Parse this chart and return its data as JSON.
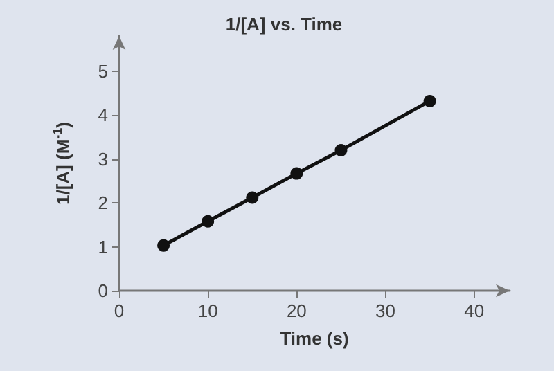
{
  "chart_data": {
    "type": "line",
    "title": "1/[A] vs. Time",
    "xlabel": "Time (s)",
    "ylabel": "1/[A] (M$^{-1}$)",
    "x": [
      5,
      10,
      15,
      20,
      25,
      35
    ],
    "series": [
      {
        "color": "#111111",
        "values": [
          1.03,
          1.58,
          2.12,
          2.67,
          3.2,
          4.32
        ]
      }
    ],
    "xlim": [
      0,
      44
    ],
    "xticks": [
      0,
      10,
      20,
      30,
      40
    ],
    "ylim": [
      0,
      5.8
    ],
    "yticks": [
      0,
      1,
      2,
      3,
      4,
      5
    ],
    "grid": false,
    "marker": "circle",
    "line_style": "solid"
  }
}
